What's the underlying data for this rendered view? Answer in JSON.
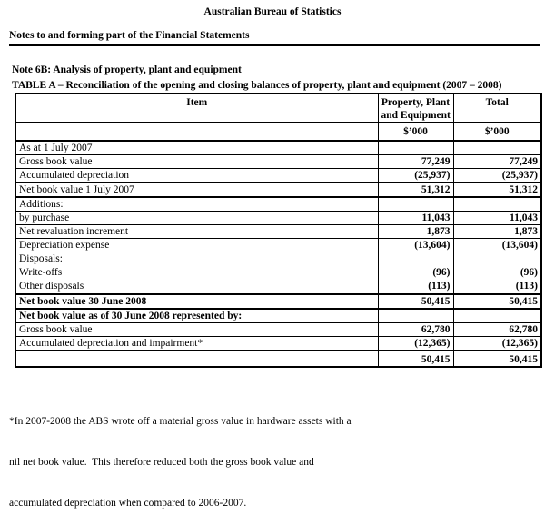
{
  "page": {
    "org_title": "Australian Bureau of Statistics",
    "doc_title": "Notes to and forming part of the Financial Statements",
    "note_title": "Note 6B: Analysis of property, plant and equipment",
    "table_title": "TABLE A – Reconciliation of the opening and closing balances of property, plant and equipment (2007 – 2008)"
  },
  "table": {
    "header": {
      "item_label": "Item",
      "ppe_label_line1": "Property, Plant",
      "ppe_label_line2": "and Equipment",
      "total_label": "Total",
      "ppe_unit": "$’000",
      "total_unit": "$’000"
    },
    "rows": [
      {
        "label": "As at 1 July 2007",
        "ppe": "",
        "total": ""
      },
      {
        "label": "Gross book value",
        "ppe": "77,249",
        "total": "77,249"
      },
      {
        "label": "Accumulated depreciation",
        "ppe": "(25,937)",
        "total": "(25,937)",
        "rule_below": "thick"
      },
      {
        "label": "Net book value 1 July 2007",
        "ppe": "51,312",
        "total": "51,312",
        "rule_below": "thick"
      },
      {
        "label": "Additions:",
        "ppe": "",
        "total": ""
      },
      {
        "label": "by purchase",
        "ppe": "11,043",
        "total": "11,043"
      },
      {
        "label": "Net revaluation increment",
        "ppe": "1,873",
        "total": "1,873"
      },
      {
        "label": "Depreciation expense",
        "ppe": "(13,604)",
        "total": "(13,604)"
      },
      {
        "label_lines": [
          "Disposals:",
          "Write-offs",
          "Other disposals"
        ],
        "ppe_lines": [
          "",
          "(96)",
          "(113)"
        ],
        "total_lines": [
          "",
          "(96)",
          "(113)"
        ],
        "rule_below": "thick"
      },
      {
        "label": "Net book value 30 June 2008",
        "bold_label": true,
        "ppe": "50,415",
        "total": "50,415",
        "rule_below": "thick"
      },
      {
        "label": "Net book value as of 30 June 2008 represented by:",
        "bold_label": true,
        "ppe": "",
        "total": ""
      },
      {
        "label": "Gross book value",
        "ppe": "62,780",
        "total": "62,780"
      },
      {
        "label": "Accumulated depreciation and impairment*",
        "ppe": "(12,365)",
        "total": "(12,365)",
        "rule_below": "thick"
      },
      {
        "label": "",
        "ppe": "50,415",
        "total": "50,415",
        "last": true
      }
    ]
  },
  "footnote": {
    "lines": [
      "*In 2007-2008 the ABS wrote off a material gross value in hardware assets with a",
      "nil net book value.  This therefore reduced both the gross book value and",
      "accumulated depreciation when compared to 2006-2007."
    ]
  }
}
